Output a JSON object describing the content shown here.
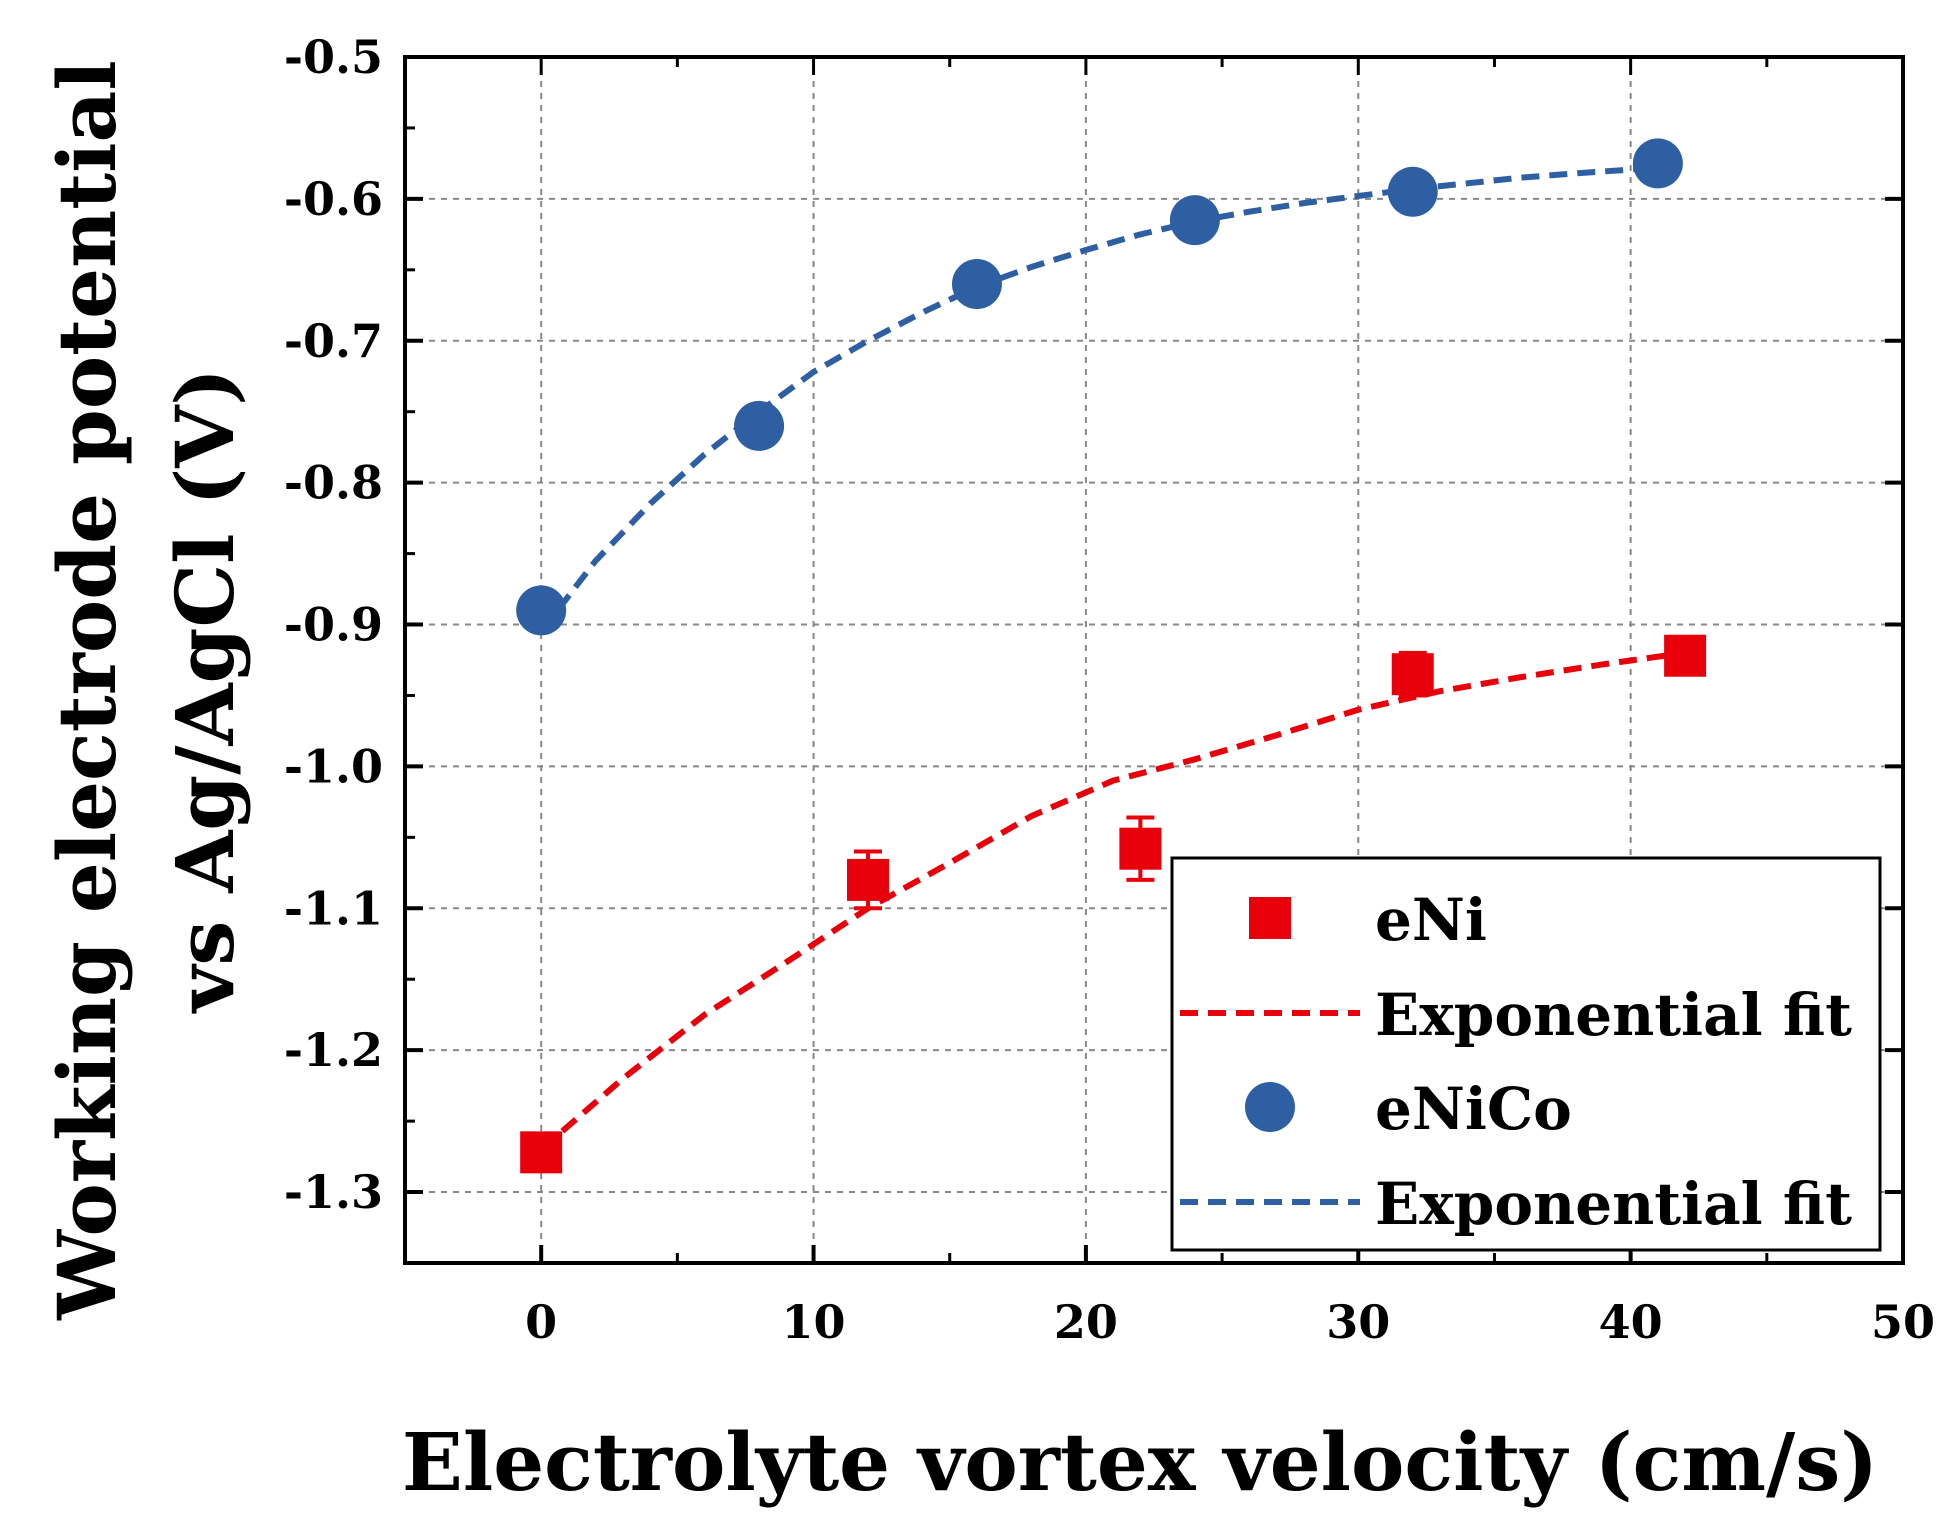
{
  "chart_data": {
    "type": "scatter",
    "title": "",
    "xlabel": "Electrolyte vortex velocity (cm/s)",
    "ylabel_line1": "Working electrode potential",
    "ylabel_line2": "vs Ag/AgCl (V)",
    "xlim": [
      -5,
      50
    ],
    "ylim": [
      -1.35,
      -0.5
    ],
    "x_ticks": [
      0,
      10,
      20,
      30,
      40,
      50
    ],
    "x_tick_labels": [
      "0",
      "10",
      "20",
      "30",
      "40",
      "50"
    ],
    "y_ticks": [
      -0.5,
      -0.6,
      -0.7,
      -0.8,
      -0.9,
      -1.0,
      -1.1,
      -1.2,
      -1.3
    ],
    "y_tick_labels": [
      "-0.5",
      "-0.6",
      "-0.7",
      "-0.8",
      "-0.9",
      "-1.0",
      "-1.1",
      "-1.2",
      "-1.3"
    ],
    "grid": true,
    "legend_position": "bottom-right",
    "series": [
      {
        "name": "eNi",
        "marker": "square",
        "color": "#e8000b",
        "points": [
          {
            "x": 0,
            "y": -1.272,
            "err": 0.012
          },
          {
            "x": 12,
            "y": -1.08,
            "err": 0.02
          },
          {
            "x": 22,
            "y": -1.058,
            "err": 0.022
          },
          {
            "x": 32,
            "y": -0.935,
            "err": 0.015
          },
          {
            "x": 42,
            "y": -0.922,
            "err": 0.01
          }
        ],
        "fit": {
          "name": "Exponential fit",
          "style": "dashed",
          "x": [
            0,
            3,
            6,
            9,
            12,
            15,
            18,
            21,
            24,
            27,
            30,
            33,
            36,
            39,
            42
          ],
          "y": [
            -1.27,
            -1.22,
            -1.175,
            -1.138,
            -1.1,
            -1.068,
            -1.035,
            -1.01,
            -0.995,
            -0.978,
            -0.96,
            -0.947,
            -0.937,
            -0.928,
            -0.92
          ]
        }
      },
      {
        "name": "eNiCo",
        "marker": "circle",
        "color": "#2e5fa3",
        "points": [
          {
            "x": 0,
            "y": -0.89
          },
          {
            "x": 8,
            "y": -0.76
          },
          {
            "x": 16,
            "y": -0.66
          },
          {
            "x": 24,
            "y": -0.615
          },
          {
            "x": 32,
            "y": -0.595
          },
          {
            "x": 41,
            "y": -0.575
          }
        ],
        "fit": {
          "name": "Exponential fit",
          "style": "dashed",
          "x": [
            0,
            2,
            4,
            6,
            8,
            10,
            12,
            14,
            16,
            18,
            20,
            22,
            24,
            26,
            28,
            30,
            32,
            34,
            36,
            38,
            41
          ],
          "y": [
            -0.905,
            -0.855,
            -0.815,
            -0.78,
            -0.75,
            -0.722,
            -0.7,
            -0.68,
            -0.662,
            -0.648,
            -0.636,
            -0.625,
            -0.616,
            -0.609,
            -0.603,
            -0.598,
            -0.593,
            -0.589,
            -0.585,
            -0.582,
            -0.578
          ]
        }
      }
    ],
    "legend": [
      {
        "label": "eNi",
        "kind": "square",
        "color": "#e8000b"
      },
      {
        "label": "Exponential fit",
        "kind": "dash",
        "color": "#e8000b"
      },
      {
        "label": "eNiCo",
        "kind": "circle",
        "color": "#2e5fa3"
      },
      {
        "label": "Exponential fit",
        "kind": "dash",
        "color": "#2e5fa3"
      }
    ]
  }
}
